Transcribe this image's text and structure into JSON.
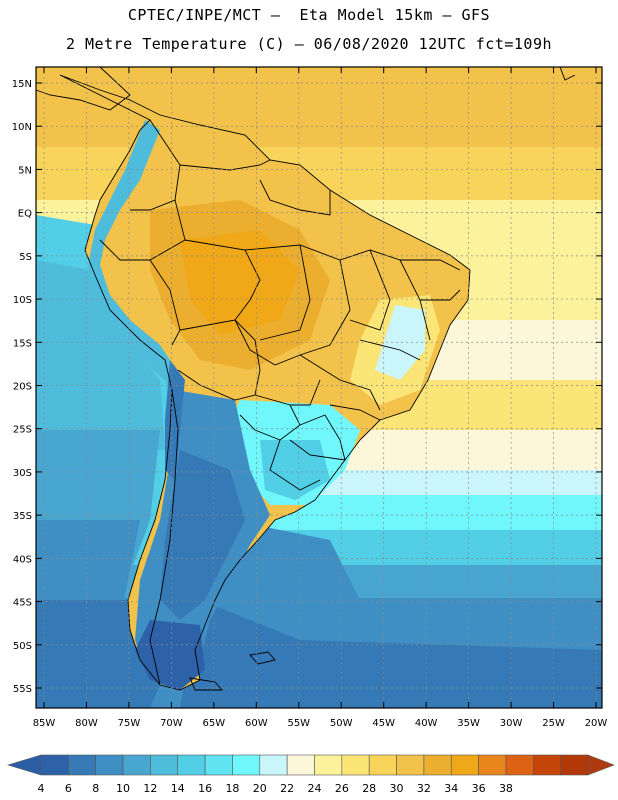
{
  "header": {
    "line1": "CPTEC/INPE/MCT –  Eta Model 15km – GFS",
    "line2": "2 Metre Temperature (C) – 06/08/2020 12UTC fct=109h"
  },
  "map": {
    "lat_labels": [
      "15N",
      "10N",
      "5N",
      "EQ",
      "5S",
      "10S",
      "15S",
      "20S",
      "25S",
      "30S",
      "35S",
      "40S",
      "45S",
      "50S",
      "55S"
    ],
    "lon_labels": [
      "85W",
      "80W",
      "75W",
      "70W",
      "65W",
      "60W",
      "55W",
      "50W",
      "45W",
      "40W",
      "35W",
      "30W",
      "25W",
      "20W"
    ]
  },
  "colorbar": {
    "labels": [
      "4",
      "6",
      "8",
      "10",
      "12",
      "14",
      "16",
      "18",
      "20",
      "22",
      "24",
      "26",
      "28",
      "30",
      "32",
      "34",
      "36",
      "38"
    ],
    "colors": [
      "#2d62a8",
      "#3579b6",
      "#3f8fc4",
      "#49a6d0",
      "#4fbcdc",
      "#52cee6",
      "#5fe4f0",
      "#70f7fb",
      "#c9f5fb",
      "#fdf7d9",
      "#fdf29c",
      "#fce577",
      "#f8d45a",
      "#f2c24a",
      "#ecae2e",
      "#f0a818",
      "#e8861c",
      "#de6214",
      "#c64508",
      "#b33808"
    ],
    "below_color": "#2b5fa5",
    "above_color": "#b03a0f"
  }
}
